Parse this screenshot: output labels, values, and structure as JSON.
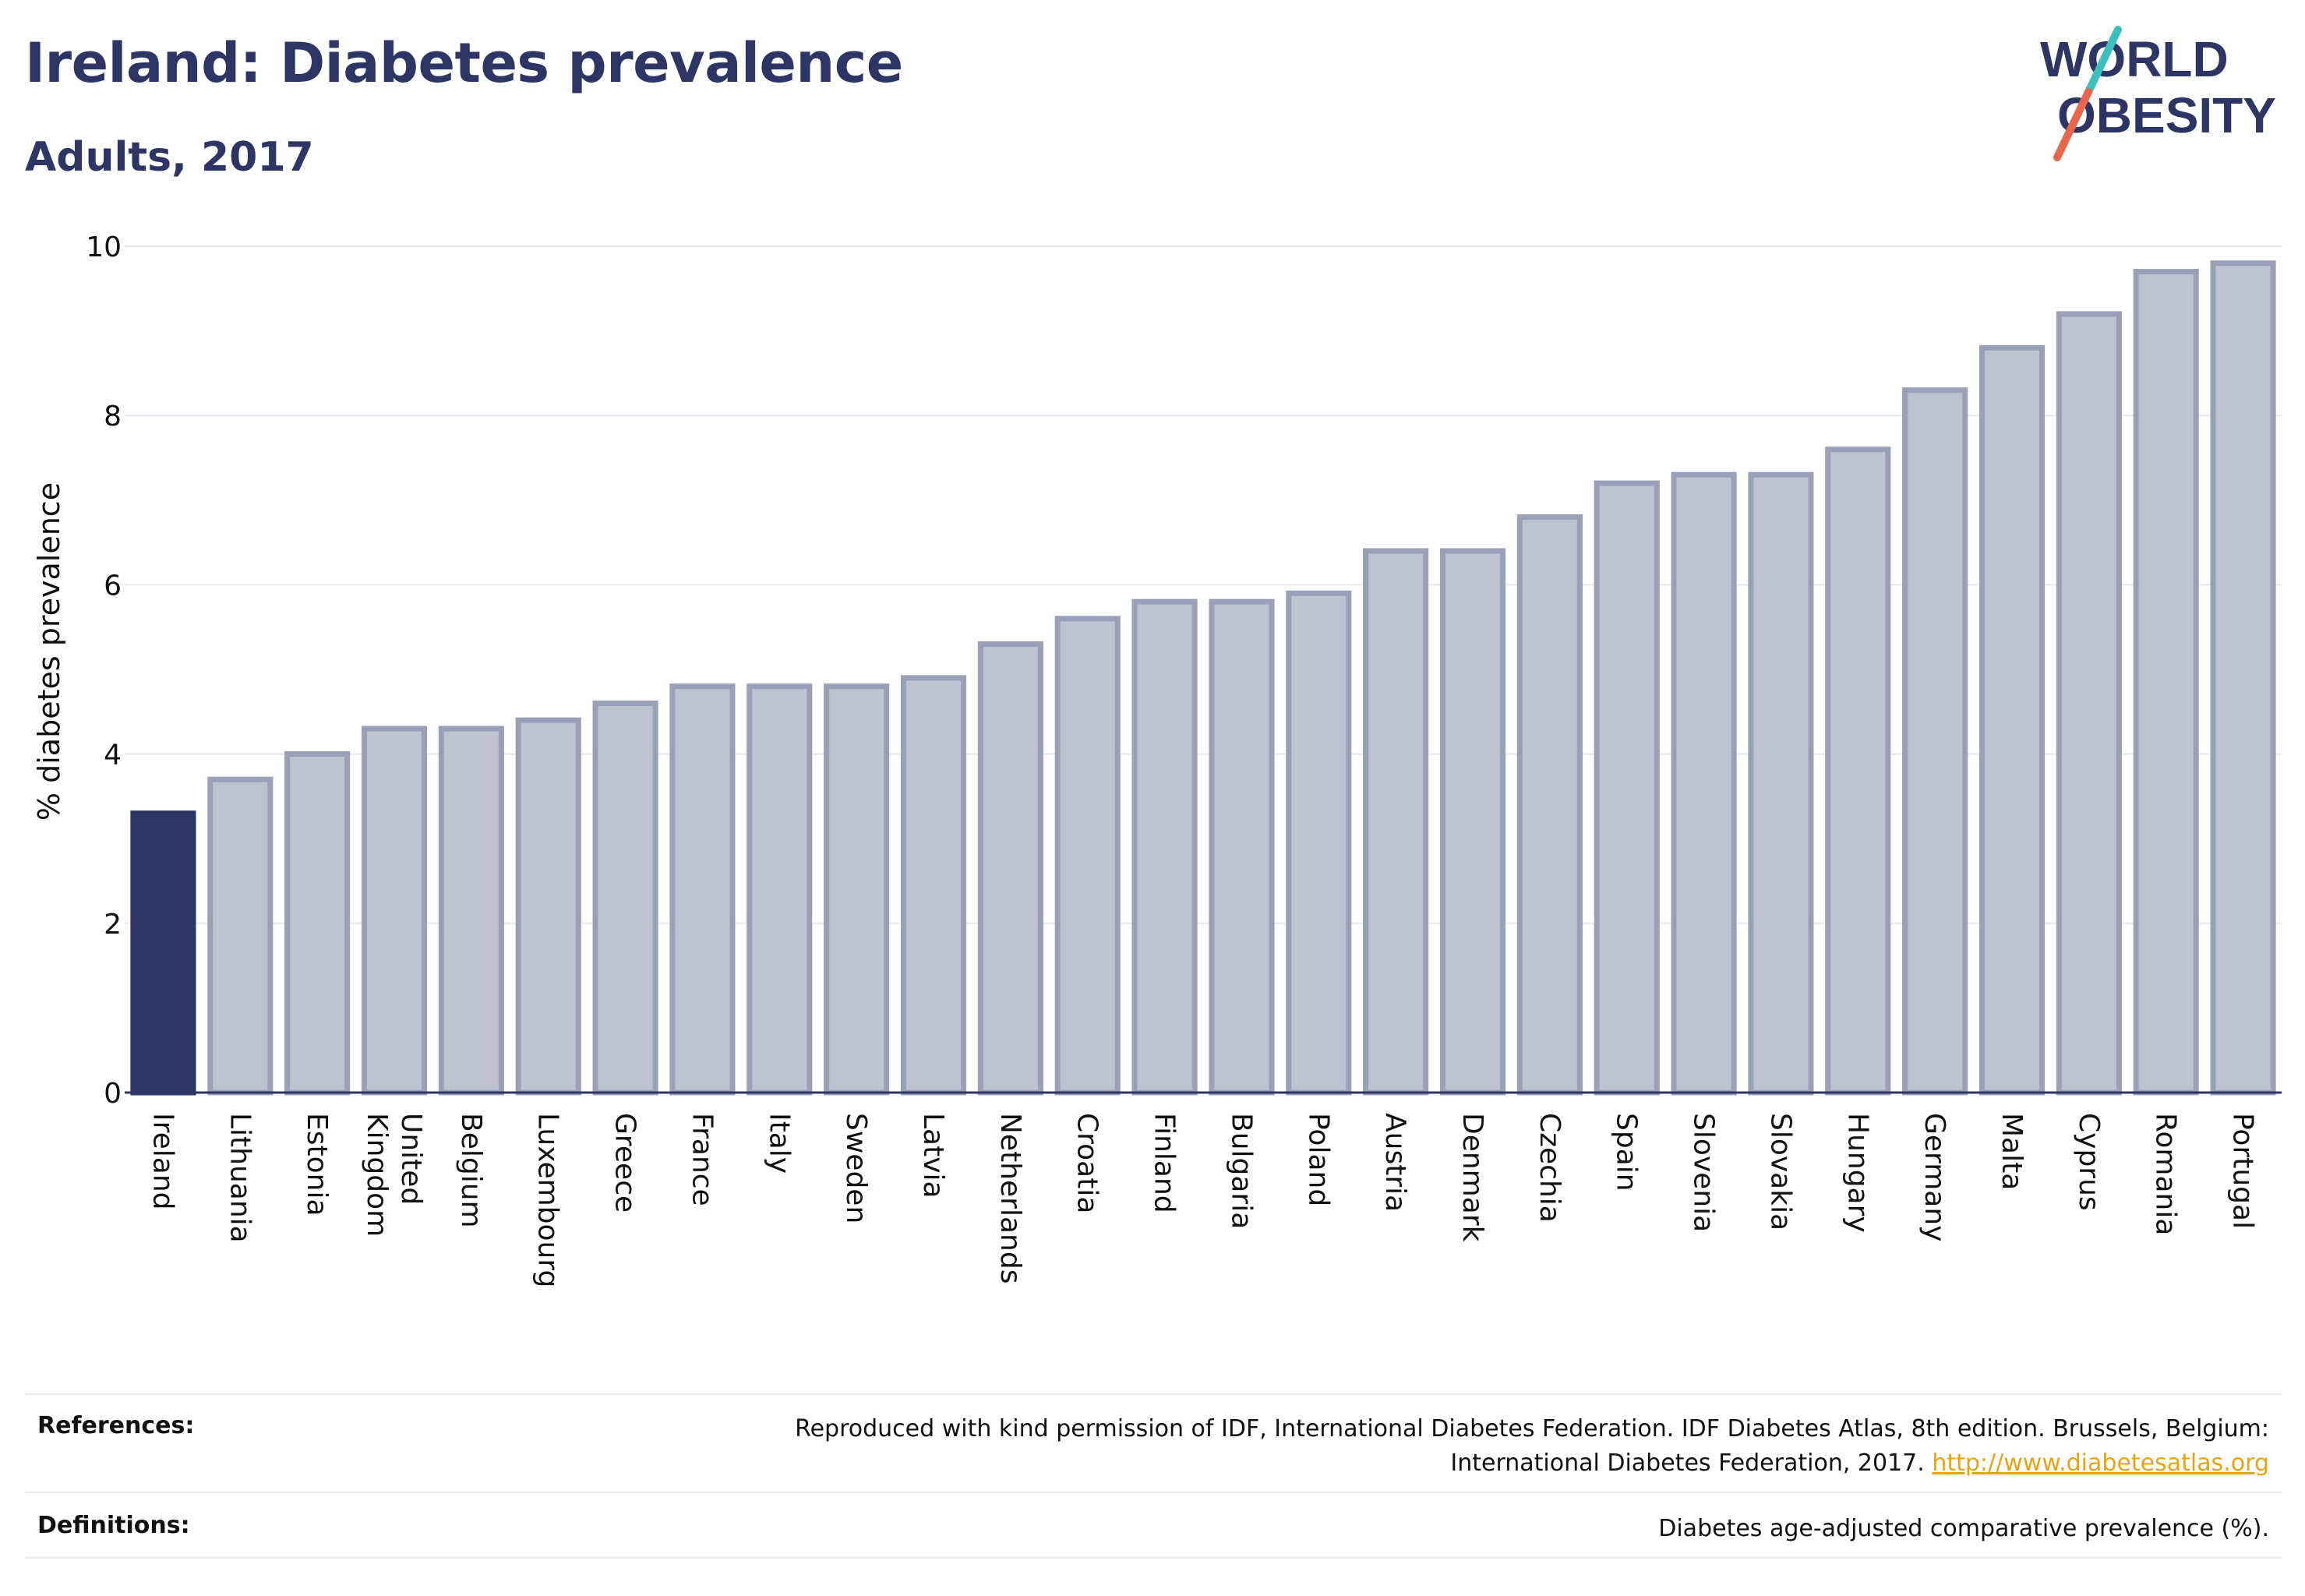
{
  "header": {
    "title": "Ireland: Diabetes prevalence",
    "subtitle": "Adults, 2017"
  },
  "logo": {
    "line1": "WORLD",
    "line2": "OBESITY",
    "colors": {
      "text": "#2c3563",
      "slash_top": "#3bbfbf",
      "slash_bottom": "#e8674c"
    }
  },
  "chart_data": {
    "type": "bar",
    "ylabel": "% diabetes prevalence",
    "ylim": [
      0,
      10
    ],
    "yticks": [
      0,
      2,
      4,
      6,
      8,
      10
    ],
    "grid": true,
    "highlight_category": "Ireland",
    "colors": {
      "highlight": "#2c3563",
      "bar_fill": "#bfc2cf",
      "bar_stroke": "#9aa0b8"
    },
    "categories": [
      "Ireland",
      "Lithuania",
      "Estonia",
      "United Kingdom",
      "Belgium",
      "Luxembourg",
      "Greece",
      "France",
      "Italy",
      "Sweden",
      "Latvia",
      "Netherlands",
      "Croatia",
      "Finland",
      "Bulgaria",
      "Poland",
      "Austria",
      "Denmark",
      "Czechia",
      "Spain",
      "Slovenia",
      "Slovakia",
      "Hungary",
      "Germany",
      "Malta",
      "Cyprus",
      "Romania",
      "Portugal"
    ],
    "values": [
      3.3,
      3.7,
      4.0,
      4.3,
      4.3,
      4.4,
      4.6,
      4.8,
      4.8,
      4.8,
      4.9,
      5.3,
      5.6,
      5.8,
      5.8,
      5.9,
      6.4,
      6.4,
      6.8,
      7.2,
      7.3,
      7.3,
      7.6,
      8.3,
      8.8,
      9.2,
      9.7,
      9.8
    ]
  },
  "footer": {
    "references_label": "References:",
    "references_line1": "Reproduced with kind permission of IDF, International Diabetes Federation. IDF Diabetes Atlas, 8th edition. Brussels, Belgium:",
    "references_line2": "International Diabetes Federation, 2017.",
    "references_link": "http://www.diabetesatlas.org",
    "definitions_label": "Definitions:",
    "definitions_text": "Diabetes age-adjusted comparative prevalence (%)."
  }
}
